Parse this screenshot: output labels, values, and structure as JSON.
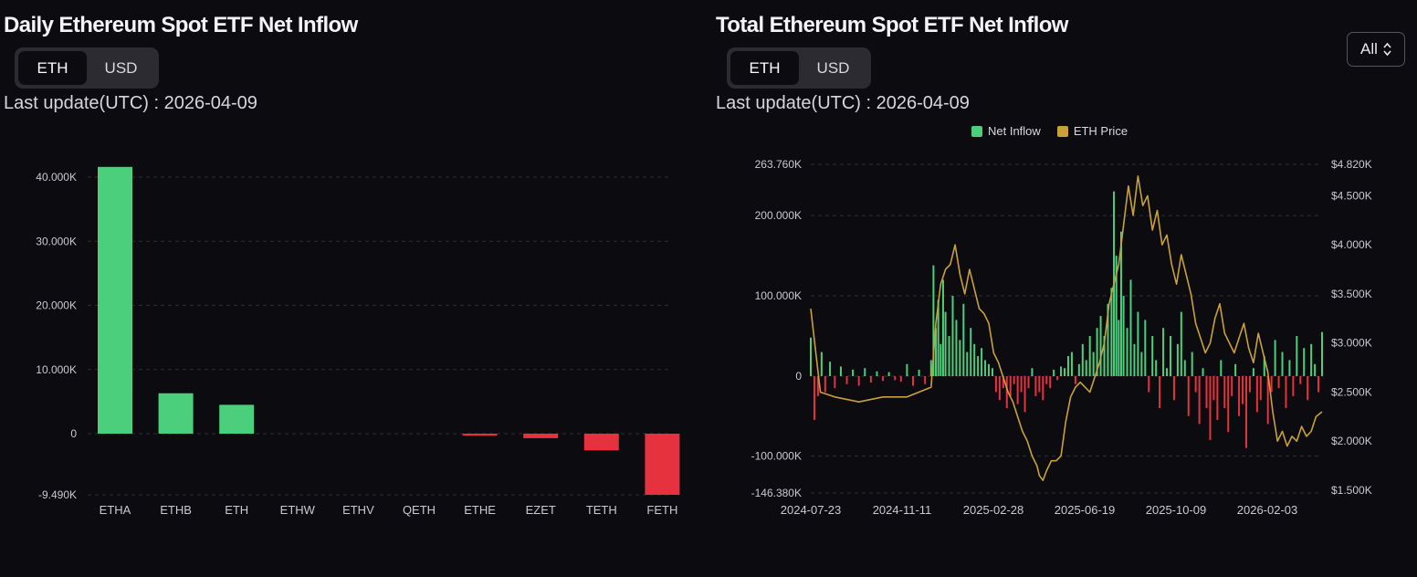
{
  "colors": {
    "positive": "#4ccf7c",
    "negative": "#e5323e",
    "price": "#c9a136",
    "grid": "#2c2d33",
    "tick": "#c9c9cf"
  },
  "left_panel": {
    "title": "Daily Ethereum Spot ETF Net Inflow",
    "toggle": {
      "eth_label": "ETH",
      "usd_label": "USD",
      "selected": "ETH"
    },
    "last_update": "Last update(UTC) : 2026-04-09"
  },
  "right_panel": {
    "title": "Total Ethereum Spot ETF Net Inflow",
    "toggle": {
      "eth_label": "ETH",
      "usd_label": "USD",
      "selected": "ETH"
    },
    "last_update": "Last update(UTC) : 2026-04-09",
    "range_select": {
      "value": "All"
    },
    "legend": {
      "inflow_label": "Net Inflow",
      "price_label": "ETH Price"
    }
  },
  "chart_data": [
    {
      "type": "bar",
      "categories": [
        "ETHA",
        "ETHB",
        "ETH",
        "ETHW",
        "ETHV",
        "QETH",
        "ETHE",
        "EZET",
        "TETH",
        "FETH"
      ],
      "values": [
        41600,
        6300,
        4500,
        0,
        0,
        0,
        -300,
        -700,
        -2600,
        -9490
      ],
      "yticks": [
        40000,
        30000,
        20000,
        10000,
        0,
        -9490
      ],
      "ytick_labels": [
        "40.000K",
        "30.000K",
        "20.000K",
        "10.000K",
        "0",
        "-9.490K"
      ],
      "ylim": [
        -9490,
        42000
      ]
    },
    {
      "type": "bar",
      "x_start": "2024-07-23",
      "x_end": "2026-04-09",
      "xtick_labels": [
        "2024-07-23",
        "2024-11-11",
        "2025-02-28",
        "2025-06-19",
        "2025-10-09",
        "2026-02-03"
      ],
      "ylim": [
        -146380,
        263760
      ],
      "yticks": [
        263760,
        200000,
        100000,
        0,
        -100000,
        -146380
      ],
      "ytick_labels": [
        "263.760K",
        "200.000K",
        "100.000K",
        "0",
        "-100.000K",
        "-146.380K"
      ],
      "y2lim": [
        1500,
        4820
      ],
      "y2ticks": [
        4820,
        4500,
        4000,
        3500,
        3000,
        2500,
        2000,
        1500
      ],
      "y2tick_labels": [
        "$4.820K",
        "$4.500K",
        "$4.000K",
        "$3.500K",
        "$3.000K",
        "$2.500K",
        "$2.000K",
        "$1.500K"
      ],
      "series": [
        {
          "name": "Net Inflow",
          "type": "bar",
          "axis": "left",
          "points": [
            [
              0,
              48000
            ],
            [
              3,
              -55000
            ],
            [
              6,
              -25000
            ],
            [
              9,
              30000
            ],
            [
              12,
              -20000
            ],
            [
              16,
              18000
            ],
            [
              20,
              -15000
            ],
            [
              25,
              12000
            ],
            [
              30,
              -10000
            ],
            [
              35,
              8000
            ],
            [
              40,
              -12000
            ],
            [
              45,
              10000
            ],
            [
              50,
              -8000
            ],
            [
              55,
              6000
            ],
            [
              60,
              -6000
            ],
            [
              65,
              5000
            ],
            [
              70,
              -5000
            ],
            [
              75,
              -7000
            ],
            [
              80,
              15000
            ],
            [
              85,
              -12000
            ],
            [
              90,
              8000
            ],
            [
              95,
              -10000
            ],
            [
              100,
              20000
            ],
            [
              102,
              138000
            ],
            [
              104,
              60000
            ],
            [
              106,
              95000
            ],
            [
              108,
              40000
            ],
            [
              110,
              120000
            ],
            [
              112,
              80000
            ],
            [
              115,
              50000
            ],
            [
              118,
              100000
            ],
            [
              121,
              70000
            ],
            [
              124,
              45000
            ],
            [
              127,
              90000
            ],
            [
              130,
              30000
            ],
            [
              133,
              60000
            ],
            [
              136,
              40000
            ],
            [
              139,
              25000
            ],
            [
              142,
              35000
            ],
            [
              145,
              20000
            ],
            [
              148,
              15000
            ],
            [
              151,
              10000
            ],
            [
              154,
              -20000
            ],
            [
              157,
              -30000
            ],
            [
              160,
              -15000
            ],
            [
              163,
              -40000
            ],
            [
              166,
              -25000
            ],
            [
              169,
              -10000
            ],
            [
              172,
              -35000
            ],
            [
              175,
              -20000
            ],
            [
              178,
              -45000
            ],
            [
              181,
              -15000
            ],
            [
              184,
              10000
            ],
            [
              187,
              -25000
            ],
            [
              190,
              -20000
            ],
            [
              193,
              -30000
            ],
            [
              196,
              -10000
            ],
            [
              199,
              -15000
            ],
            [
              202,
              8000
            ],
            [
              205,
              -5000
            ],
            [
              208,
              12000
            ],
            [
              211,
              10000
            ],
            [
              214,
              25000
            ],
            [
              217,
              30000
            ],
            [
              220,
              -10000
            ],
            [
              223,
              15000
            ],
            [
              226,
              40000
            ],
            [
              229,
              20000
            ],
            [
              232,
              50000
            ],
            [
              235,
              30000
            ],
            [
              238,
              60000
            ],
            [
              241,
              75000
            ],
            [
              244,
              50000
            ],
            [
              247,
              90000
            ],
            [
              250,
              110000
            ],
            [
              252,
              230000
            ],
            [
              254,
              150000
            ],
            [
              256,
              70000
            ],
            [
              258,
              180000
            ],
            [
              260,
              100000
            ],
            [
              263,
              60000
            ],
            [
              266,
              120000
            ],
            [
              269,
              40000
            ],
            [
              272,
              80000
            ],
            [
              275,
              30000
            ],
            [
              278,
              70000
            ],
            [
              281,
              -20000
            ],
            [
              284,
              50000
            ],
            [
              287,
              20000
            ],
            [
              290,
              -40000
            ],
            [
              293,
              60000
            ],
            [
              296,
              10000
            ],
            [
              299,
              50000
            ],
            [
              302,
              -30000
            ],
            [
              305,
              40000
            ],
            [
              308,
              80000
            ],
            [
              311,
              20000
            ],
            [
              314,
              -50000
            ],
            [
              317,
              30000
            ],
            [
              320,
              -20000
            ],
            [
              323,
              -60000
            ],
            [
              326,
              10000
            ],
            [
              329,
              -40000
            ],
            [
              332,
              -80000
            ],
            [
              335,
              -30000
            ],
            [
              338,
              -55000
            ],
            [
              341,
              20000
            ],
            [
              344,
              -40000
            ],
            [
              347,
              -70000
            ],
            [
              350,
              -25000
            ],
            [
              353,
              15000
            ],
            [
              356,
              -50000
            ],
            [
              359,
              -35000
            ],
            [
              362,
              -90000
            ],
            [
              365,
              -20000
            ],
            [
              368,
              10000
            ],
            [
              371,
              -45000
            ],
            [
              374,
              -30000
            ],
            [
              377,
              25000
            ],
            [
              380,
              -60000
            ],
            [
              383,
              -20000
            ],
            [
              386,
              45000
            ],
            [
              389,
              -15000
            ],
            [
              392,
              30000
            ],
            [
              395,
              -40000
            ],
            [
              398,
              20000
            ],
            [
              401,
              -25000
            ],
            [
              404,
              50000
            ],
            [
              407,
              -10000
            ],
            [
              410,
              35000
            ],
            [
              413,
              -30000
            ],
            [
              416,
              40000
            ],
            [
              419,
              15000
            ],
            [
              422,
              -20000
            ],
            [
              425,
              55000
            ]
          ]
        },
        {
          "name": "ETH Price",
          "type": "line",
          "axis": "right",
          "points": [
            [
              0,
              3350
            ],
            [
              8,
              2500
            ],
            [
              20,
              2450
            ],
            [
              40,
              2400
            ],
            [
              60,
              2450
            ],
            [
              80,
              2450
            ],
            [
              100,
              2550
            ],
            [
              104,
              3200
            ],
            [
              108,
              3600
            ],
            [
              112,
              3750
            ],
            [
              116,
              3800
            ],
            [
              120,
              4000
            ],
            [
              124,
              3700
            ],
            [
              128,
              3500
            ],
            [
              132,
              3750
            ],
            [
              136,
              3550
            ],
            [
              140,
              3350
            ],
            [
              144,
              3300
            ],
            [
              148,
              3200
            ],
            [
              152,
              2900
            ],
            [
              156,
              2800
            ],
            [
              160,
              2650
            ],
            [
              164,
              2500
            ],
            [
              168,
              2400
            ],
            [
              172,
              2250
            ],
            [
              176,
              2100
            ],
            [
              180,
              2000
            ],
            [
              184,
              1850
            ],
            [
              188,
              1750
            ],
            [
              190,
              1650
            ],
            [
              193,
              1600
            ],
            [
              196,
              1700
            ],
            [
              200,
              1800
            ],
            [
              204,
              1800
            ],
            [
              208,
              1850
            ],
            [
              212,
              2200
            ],
            [
              216,
              2450
            ],
            [
              220,
              2550
            ],
            [
              224,
              2600
            ],
            [
              228,
              2550
            ],
            [
              232,
              2500
            ],
            [
              236,
              2650
            ],
            [
              240,
              2800
            ],
            [
              244,
              3000
            ],
            [
              248,
              3400
            ],
            [
              252,
              3600
            ],
            [
              256,
              3800
            ],
            [
              260,
              4200
            ],
            [
              264,
              4600
            ],
            [
              268,
              4300
            ],
            [
              272,
              4700
            ],
            [
              276,
              4400
            ],
            [
              280,
              4500
            ],
            [
              284,
              4150
            ],
            [
              288,
              4350
            ],
            [
              292,
              4000
            ],
            [
              296,
              4100
            ],
            [
              300,
              3800
            ],
            [
              304,
              3600
            ],
            [
              308,
              3900
            ],
            [
              312,
              3700
            ],
            [
              316,
              3500
            ],
            [
              320,
              3200
            ],
            [
              324,
              3050
            ],
            [
              328,
              2900
            ],
            [
              332,
              3000
            ],
            [
              336,
              3250
            ],
            [
              340,
              3400
            ],
            [
              344,
              3100
            ],
            [
              348,
              3000
            ],
            [
              352,
              2900
            ],
            [
              356,
              3050
            ],
            [
              360,
              3200
            ],
            [
              364,
              2950
            ],
            [
              368,
              2800
            ],
            [
              372,
              3100
            ],
            [
              376,
              2900
            ],
            [
              380,
              2700
            ],
            [
              384,
              2300
            ],
            [
              388,
              2000
            ],
            [
              392,
              2100
            ],
            [
              396,
              1950
            ],
            [
              400,
              2050
            ],
            [
              404,
              2000
            ],
            [
              408,
              2150
            ],
            [
              412,
              2050
            ],
            [
              416,
              2100
            ],
            [
              420,
              2250
            ],
            [
              425,
              2300
            ]
          ]
        }
      ]
    }
  ]
}
